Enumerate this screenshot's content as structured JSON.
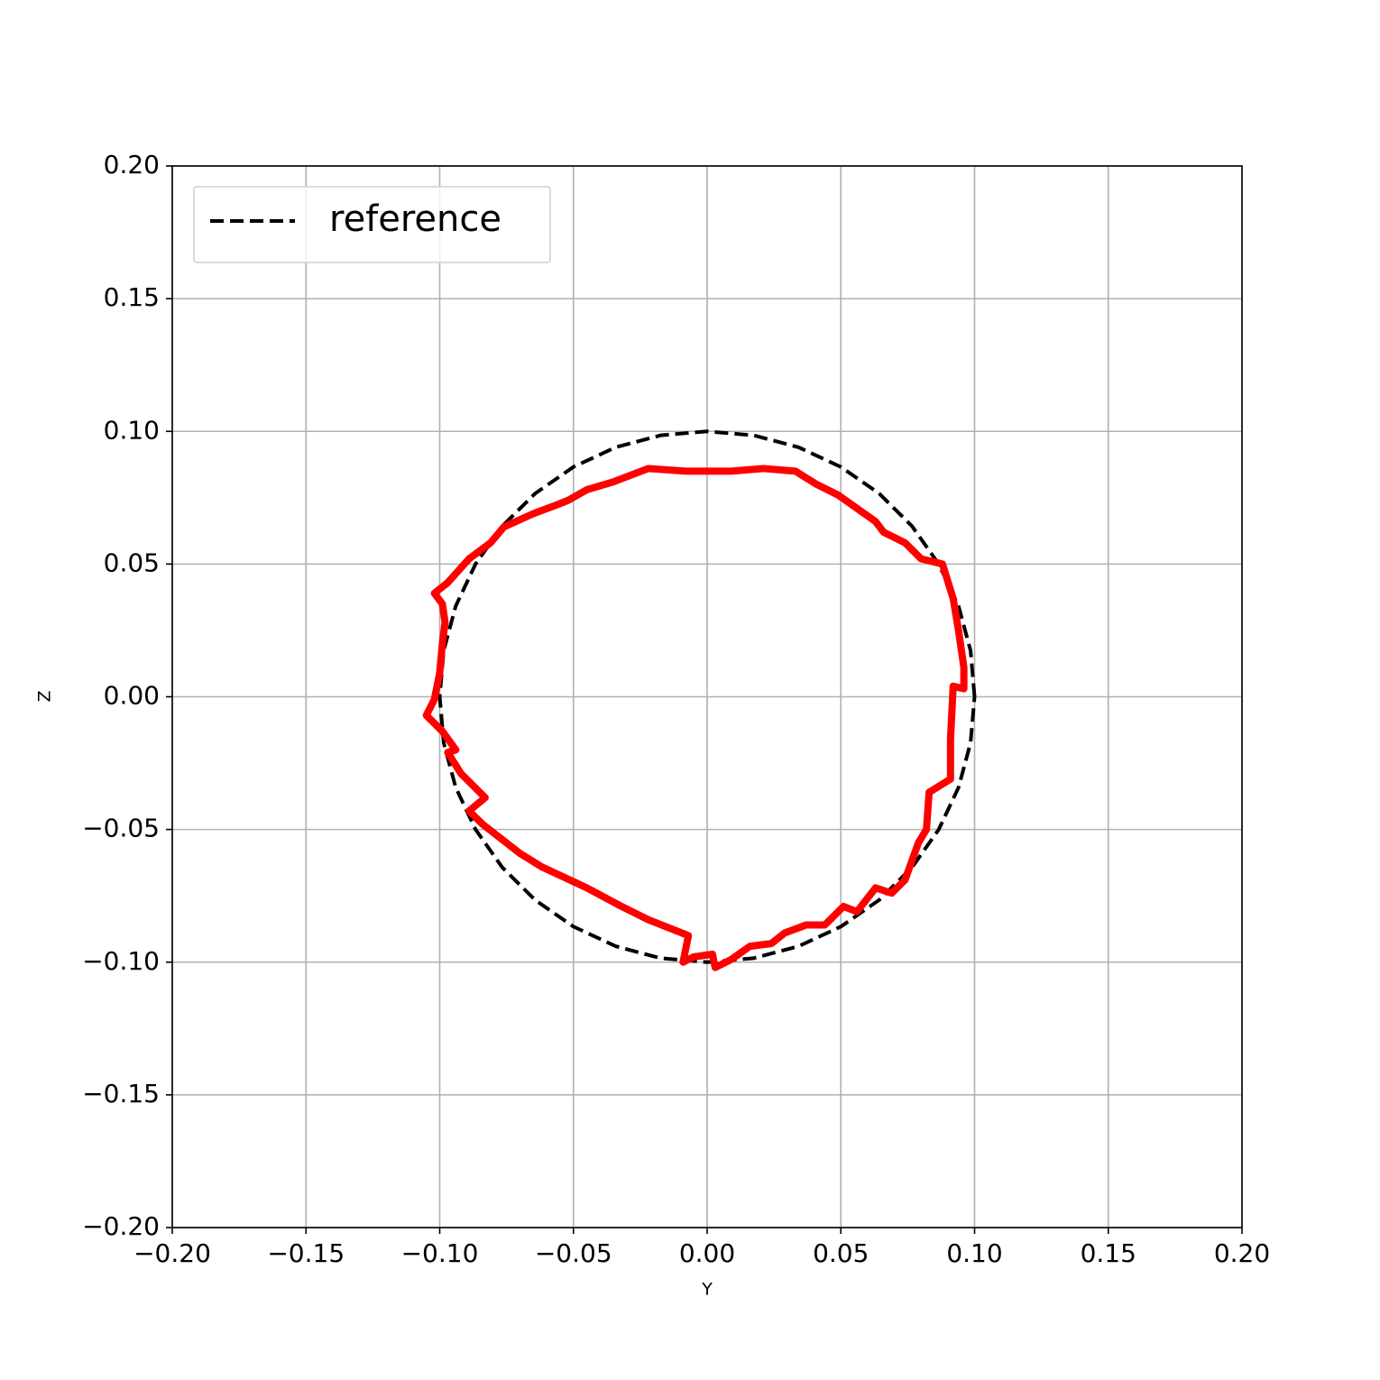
{
  "chart_data": {
    "type": "line",
    "x_label": "Y",
    "y_label": "Z",
    "xlim": [
      -0.2,
      0.2
    ],
    "ylim": [
      -0.2,
      0.2
    ],
    "xticks": [
      {
        "value": -0.2,
        "label": "−0.20"
      },
      {
        "value": -0.15,
        "label": "−0.15"
      },
      {
        "value": -0.1,
        "label": "−0.10"
      },
      {
        "value": -0.05,
        "label": "−0.05"
      },
      {
        "value": 0,
        "label": "0.00"
      },
      {
        "value": 0.05,
        "label": "0.05"
      },
      {
        "value": 0.1,
        "label": "0.10"
      },
      {
        "value": 0.15,
        "label": "0.15"
      },
      {
        "value": 0.2,
        "label": "0.20"
      }
    ],
    "yticks": [
      {
        "value": -0.2,
        "label": "−0.20"
      },
      {
        "value": -0.15,
        "label": "−0.15"
      },
      {
        "value": -0.1,
        "label": "−0.10"
      },
      {
        "value": -0.05,
        "label": "−0.05"
      },
      {
        "value": 0,
        "label": "0.00"
      },
      {
        "value": 0.05,
        "label": "0.05"
      },
      {
        "value": 0.1,
        "label": "0.10"
      },
      {
        "value": 0.15,
        "label": "0.15"
      },
      {
        "value": 0.2,
        "label": "0.20"
      }
    ],
    "grid": true,
    "legend": "upper-left",
    "series": [
      {
        "name": "reference",
        "color": "#000000",
        "linestyle": "dashed",
        "x": [
          0.1,
          0.0985,
          0.094,
          0.0866,
          0.0766,
          0.0643,
          0.05,
          0.0342,
          0.0174,
          0,
          -0.0174,
          -0.0342,
          -0.05,
          -0.0643,
          -0.0766,
          -0.0866,
          -0.094,
          -0.0985,
          -0.1,
          -0.0985,
          -0.094,
          -0.0866,
          -0.0766,
          -0.0643,
          -0.05,
          -0.0342,
          -0.0174,
          0,
          0.0174,
          0.0342,
          0.05,
          0.0643,
          0.0766,
          0.0866,
          0.094,
          0.0985,
          0.1
        ],
        "values": [
          0,
          0.0174,
          0.0342,
          0.05,
          0.0643,
          0.0766,
          0.0866,
          0.094,
          0.0985,
          0.1,
          0.0985,
          0.094,
          0.0866,
          0.0766,
          0.0643,
          0.05,
          0.0342,
          0.0174,
          0,
          -0.0174,
          -0.0342,
          -0.05,
          -0.0643,
          -0.0766,
          -0.0866,
          -0.094,
          -0.0985,
          -0.1,
          -0.0985,
          -0.094,
          -0.0866,
          -0.0766,
          -0.0643,
          -0.05,
          -0.0342,
          -0.0174,
          0
        ]
      },
      {
        "color": "#ff0000",
        "linestyle": "solid",
        "x": [
          -0.102,
          -0.097,
          -0.089,
          -0.081,
          -0.076,
          -0.065,
          -0.057,
          -0.052,
          -0.045,
          -0.035,
          -0.022,
          -0.008,
          0.009,
          0.021,
          0.033,
          0.041,
          0.049,
          0.063,
          0.066,
          0.074,
          0.08,
          0.088,
          0.092,
          0.094,
          0.096,
          0.096,
          0.092,
          0.091,
          0.091,
          0.083,
          0.082,
          0.079,
          0.074,
          0.069,
          0.063,
          0.056,
          0.051,
          0.044,
          0.037,
          0.029,
          0.024,
          0.016,
          0.009,
          0.003,
          0.002,
          -0.005,
          -0.009,
          -0.007,
          -0.022,
          -0.032,
          -0.045,
          -0.062,
          -0.07,
          -0.084,
          -0.089,
          -0.083,
          -0.092,
          -0.097,
          -0.094,
          -0.099,
          -0.105,
          -0.102,
          -0.1,
          -0.099,
          -0.098,
          -0.099,
          -0.102
        ],
        "values": [
          0.039,
          0.043,
          0.052,
          0.058,
          0.064,
          0.069,
          0.072,
          0.074,
          0.078,
          0.081,
          0.086,
          0.085,
          0.085,
          0.086,
          0.085,
          0.08,
          0.076,
          0.066,
          0.062,
          0.058,
          0.052,
          0.05,
          0.037,
          0.025,
          0.011,
          0.003,
          0.004,
          -0.016,
          -0.031,
          -0.036,
          -0.05,
          -0.055,
          -0.069,
          -0.074,
          -0.072,
          -0.081,
          -0.079,
          -0.086,
          -0.086,
          -0.089,
          -0.093,
          -0.094,
          -0.099,
          -0.102,
          -0.097,
          -0.098,
          -0.1,
          -0.09,
          -0.084,
          -0.079,
          -0.072,
          -0.064,
          -0.059,
          -0.048,
          -0.043,
          -0.038,
          -0.029,
          -0.021,
          -0.02,
          -0.013,
          -0.007,
          -0.001,
          0.009,
          0.02,
          0.028,
          0.035,
          0.039
        ]
      }
    ]
  }
}
